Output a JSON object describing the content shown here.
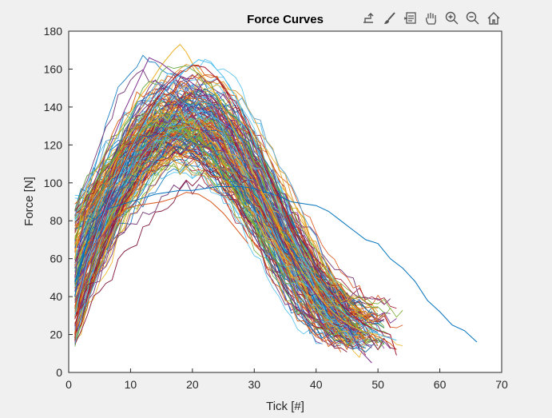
{
  "toolbar": {
    "icons": [
      "export-icon",
      "brush-icon",
      "datatip-icon",
      "pan-hand-icon",
      "zoom-in-icon",
      "zoom-out-icon",
      "home-icon"
    ]
  },
  "colors": {
    "background": "#f0f0f0",
    "axes_background": "#ffffff",
    "axis": "#262626",
    "series_palette": [
      "#0072BD",
      "#D95319",
      "#EDB120",
      "#7E2F8E",
      "#77AC30",
      "#4DBEEE",
      "#A2142F"
    ]
  },
  "chart_data": {
    "type": "line",
    "title": "Force Curves",
    "xlabel": "Tick [#]",
    "ylabel": "Force [N]",
    "xlim": [
      0,
      70
    ],
    "ylim": [
      0,
      180
    ],
    "xticks": [
      0,
      10,
      20,
      30,
      40,
      50,
      60,
      70
    ],
    "yticks": [
      0,
      20,
      40,
      60,
      80,
      100,
      120,
      140,
      160,
      180
    ],
    "grid": false,
    "legend": "none",
    "series_count_estimate": 300,
    "description_of_bundle": "Many overlapping force curves; most start near x=1 at y 10-90, peak between x=12 and x=24 at y 90-172, and fall back to y 5-40 by x 44-54.",
    "series": [
      {
        "name": "",
        "color": "#0072BD",
        "x": [
          1,
          2,
          3,
          4,
          6,
          8,
          10,
          12,
          14,
          16,
          18,
          20,
          22,
          24,
          26,
          28,
          30,
          32,
          34,
          36,
          38,
          40,
          42,
          44,
          46,
          48,
          50,
          52,
          54,
          56,
          58,
          60,
          62,
          64,
          66
        ],
        "y": [
          40,
          58,
          70,
          80,
          86,
          88,
          90,
          92,
          94,
          95,
          96,
          96,
          97,
          98,
          98,
          98,
          97,
          95,
          93,
          90,
          89,
          88,
          85,
          80,
          75,
          70,
          68,
          60,
          55,
          48,
          38,
          32,
          25,
          22,
          16
        ]
      },
      {
        "name": "",
        "color": "#EDB120",
        "x": [
          1,
          2,
          3,
          5,
          7,
          9,
          11,
          13,
          15,
          17,
          18,
          19,
          20,
          22,
          24,
          26,
          28,
          30,
          32,
          34,
          36,
          38,
          40,
          42,
          44,
          46,
          48,
          50
        ],
        "y": [
          60,
          85,
          98,
          110,
          120,
          132,
          143,
          152,
          162,
          170,
          173,
          169,
          163,
          155,
          146,
          133,
          119,
          104,
          90,
          76,
          63,
          52,
          42,
          34,
          28,
          24,
          21,
          20
        ]
      },
      {
        "name": "",
        "color": "#7E2F8E",
        "x": [
          1,
          2,
          3,
          5,
          7,
          9,
          11,
          13,
          15,
          17,
          19,
          21,
          23,
          25,
          27,
          29,
          31,
          33,
          35,
          37,
          39,
          41,
          43,
          45,
          47,
          49
        ],
        "y": [
          50,
          72,
          90,
          108,
          122,
          138,
          152,
          166,
          163,
          158,
          155,
          150,
          143,
          134,
          122,
          108,
          94,
          80,
          67,
          55,
          45,
          37,
          30,
          25,
          12,
          5
        ]
      },
      {
        "name": "",
        "color": "#A2142F",
        "x": [
          1,
          2,
          4,
          6,
          8,
          10,
          12,
          14,
          16,
          18,
          20,
          22,
          24,
          26,
          28,
          30,
          32,
          34,
          36,
          38,
          40,
          42,
          44,
          46,
          48,
          50,
          52,
          53
        ],
        "y": [
          18,
          45,
          70,
          88,
          104,
          118,
          131,
          143,
          152,
          158,
          162,
          161,
          155,
          146,
          134,
          121,
          106,
          92,
          78,
          65,
          54,
          44,
          36,
          30,
          25,
          22,
          20,
          9
        ]
      },
      {
        "name": "",
        "color": "#77AC30",
        "x": [
          1,
          3,
          5,
          7,
          9,
          11,
          13,
          15,
          17,
          19,
          21,
          23,
          25,
          27,
          29,
          31,
          33,
          35
        ],
        "y": [
          70,
          92,
          104,
          112,
          120,
          126,
          130,
          130,
          128,
          125,
          120,
          113,
          105,
          95,
          84,
          72,
          62,
          50
        ]
      },
      {
        "name": "",
        "color": "#D95319",
        "x": [
          1,
          2,
          3,
          5,
          7,
          9,
          11,
          13,
          15,
          17,
          19,
          21,
          23,
          25,
          27,
          29
        ],
        "y": [
          20,
          40,
          55,
          70,
          80,
          86,
          88,
          89,
          90,
          92,
          95,
          94,
          90,
          84,
          76,
          68
        ]
      },
      {
        "name": "",
        "color": "#4DBEEE",
        "x": [
          1,
          3,
          5,
          7,
          9,
          11,
          13,
          15,
          17,
          19,
          21,
          23,
          25,
          27,
          29,
          31,
          33,
          35,
          37,
          39,
          41,
          43,
          45,
          47,
          49,
          51,
          53
        ],
        "y": [
          30,
          58,
          78,
          95,
          110,
          124,
          136,
          146,
          154,
          160,
          165,
          163,
          156,
          145,
          130,
          113,
          96,
          80,
          66,
          54,
          44,
          36,
          30,
          26,
          22,
          19,
          17
        ]
      }
    ]
  }
}
